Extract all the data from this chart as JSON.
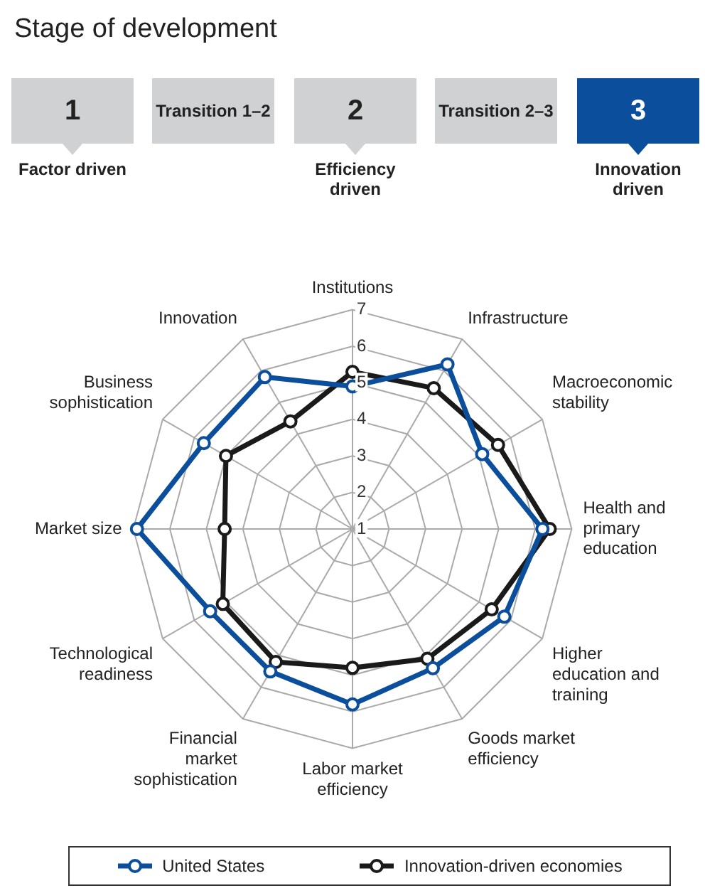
{
  "chart_data": {
    "type": "radar",
    "title": "Stage of development",
    "annotations": [
      "1",
      "Factor driven",
      "Transition 1–2",
      "2",
      "Efficiency driven",
      "Transition 2–3",
      "3",
      "Innovation driven"
    ],
    "categories": [
      "Institutions",
      "Infrastructure",
      "Macroeconomic stability",
      "Health and primary education",
      "Higher education and training",
      "Goods market efficiency",
      "Labor market efficiency",
      "Financial market sophistication",
      "Technological readiness",
      "Market size",
      "Business sophistication",
      "Innovation"
    ],
    "series": [
      {
        "name": "United States",
        "color": "#0b4f9c",
        "values": [
          4.9,
          6.2,
          5.1,
          6.2,
          5.8,
          5.4,
          5.8,
          5.5,
          5.5,
          6.9,
          5.7,
          5.8
        ]
      },
      {
        "name": "Innovation-driven economies",
        "color": "#1a1a1a",
        "values": [
          5.3,
          5.45,
          5.6,
          6.4,
          5.4,
          5.1,
          4.8,
          5.2,
          5.1,
          4.5,
          5.0,
          4.4
        ]
      }
    ],
    "ylim": [
      1,
      7
    ],
    "yticks": [
      1,
      2,
      3,
      4,
      5,
      6,
      7
    ],
    "grid": true,
    "legend": "bottom",
    "marker": "circle",
    "line_style": "solid"
  }
}
